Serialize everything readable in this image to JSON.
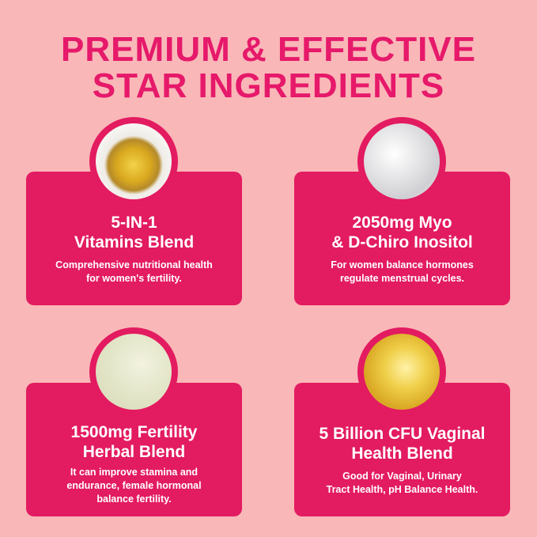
{
  "header": {
    "line1": "PREMIUM & EFFECTIVE",
    "line2": "STAR  INGREDIENTS"
  },
  "cards": [
    {
      "title1": "5-IN-1",
      "title2": "Vitamins Blend",
      "desc1": "Comprehensive nutritional health",
      "desc2": "for women's fertility.",
      "image": "golden-oil-droplet"
    },
    {
      "title1": "2050mg Myo",
      "title2": "& D-Chiro Inositol",
      "desc1": "For women balance hormones",
      "desc2": "regulate menstrual cycles.",
      "image": "white-bubbles"
    },
    {
      "title1": "1500mg Fertility",
      "title2": "Herbal Blend",
      "desc1": "It can improve stamina and",
      "desc2": "endurance, female hormonal",
      "desc3": "balance fertility.",
      "image": "clear-gel-droplet"
    },
    {
      "title1": "5 Billion CFU Vaginal",
      "title2": "Health Blend",
      "desc1": "Good for Vaginal, Urinary",
      "desc2": "Tract Health, pH Balance Health.",
      "image": "golden-capsule-bubbles"
    }
  ],
  "colors": {
    "background": "#f9b7b8",
    "card": "#e31b60",
    "title": "#e6196a"
  }
}
